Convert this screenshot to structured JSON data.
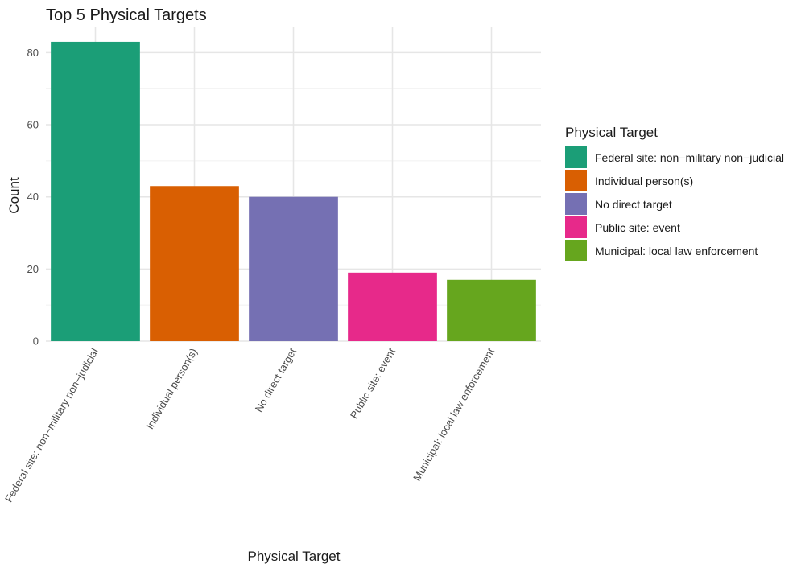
{
  "chart_data": {
    "type": "bar",
    "title": "Top 5 Physical Targets",
    "xlabel": "Physical Target",
    "ylabel": "Count",
    "categories": [
      "Federal site: non−military non−judicial",
      "Individual person(s)",
      "No direct target",
      "Public site: event",
      "Municipal: local law enforcement"
    ],
    "values": [
      83,
      43,
      40,
      19,
      17
    ],
    "colors": [
      "#1b9e77",
      "#d95f02",
      "#7570b3",
      "#e7298a",
      "#66a61e"
    ],
    "ylim": [
      0,
      87
    ],
    "yticks": [
      0,
      20,
      40,
      60,
      80
    ],
    "grid": true,
    "legend": {
      "title": "Physical Target",
      "placement": "right"
    }
  }
}
